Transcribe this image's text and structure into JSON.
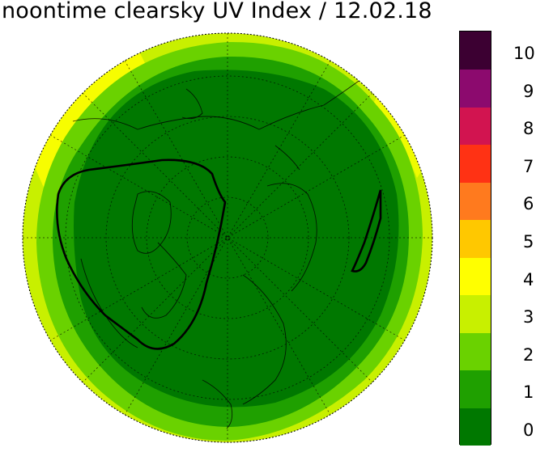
{
  "title": "noontime clearsky UV Index / 12.02.18",
  "legend": {
    "levels": [
      {
        "label": "0",
        "color": "#007800"
      },
      {
        "label": "1",
        "color": "#1fa000"
      },
      {
        "label": "2",
        "color": "#6ad200"
      },
      {
        "label": "3",
        "color": "#c8f000"
      },
      {
        "label": "4",
        "color": "#ffff00"
      },
      {
        "label": "5",
        "color": "#ffc800"
      },
      {
        "label": "6",
        "color": "#ff7a1e"
      },
      {
        "label": "7",
        "color": "#ff3214"
      },
      {
        "label": "8",
        "color": "#d21450"
      },
      {
        "label": "9",
        "color": "#8c0a6e"
      },
      {
        "label": "10",
        "color": "#3c0032"
      }
    ]
  },
  "map": {
    "projection": "north polar stereographic",
    "graticule": true
  }
}
